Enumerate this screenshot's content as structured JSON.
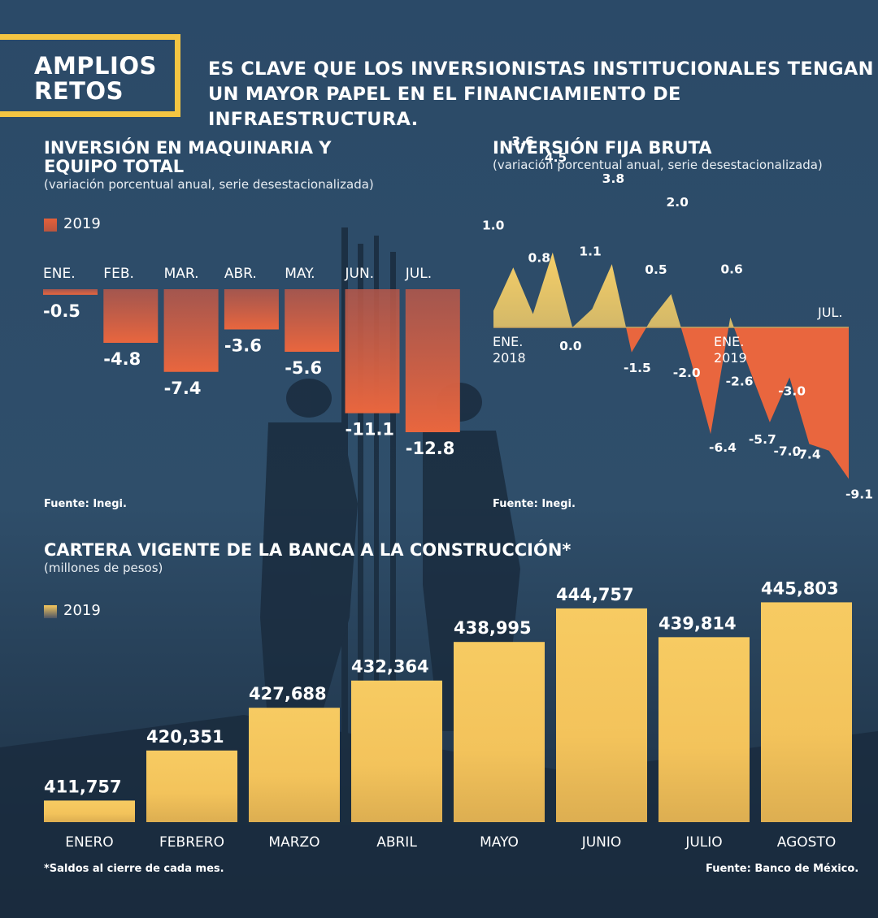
{
  "header": {
    "box_title_line1": "AMPLIOS",
    "box_title_line2": "RETOS",
    "headline_line1": "ES CLAVE QUE LOS INVERSIONISTAS INSTITUCIONALES TENGAN",
    "headline_line2": "UN MAYOR PAPEL EN EL FINANCIAMIENTO DE INFRAESTRUCTURA."
  },
  "colors": {
    "accent": "#f4c542",
    "bar_red": "#e4603a",
    "bar_yellow": "#f6c75c",
    "background": "#2a4a66"
  },
  "chart1_text": {
    "title_line1": "INVERSIÓN EN MAQUINARIA Y",
    "title_line2": "EQUIPO TOTAL",
    "subtitle": "(variación porcentual anual, serie desestacionalizada)",
    "legend": "2019",
    "source": "Fuente: Inegi."
  },
  "chart2_text": {
    "title": "INVERSIÓN FIJA BRUTA",
    "subtitle": "(variación porcentual anual, serie desestacionalizada)",
    "source": "Fuente: Inegi."
  },
  "chart3_text": {
    "title": "CARTERA VIGENTE DE LA BANCA A LA CONSTRUCCIÓN*",
    "subtitle": "(millones de pesos)",
    "legend": "2019",
    "footnote": "*Saldos al cierre de cada mes.",
    "source": "Fuente: Banco de México."
  },
  "chart_data": [
    {
      "type": "bar",
      "title": "INVERSIÓN EN MAQUINARIA Y EQUIPO TOTAL",
      "subtitle": "(variación porcentual anual, serie desestacionalizada)",
      "categories": [
        "ENE.",
        "FEB.",
        "MAR.",
        "ABR.",
        "MAY.",
        "JUN.",
        "JUL."
      ],
      "series": [
        {
          "name": "2019",
          "values": [
            -0.5,
            -4.8,
            -7.4,
            -3.6,
            -5.6,
            -11.1,
            -12.8
          ]
        }
      ],
      "data_labels": [
        "-0.5",
        "-4.8",
        "-7.4",
        "-3.6",
        "-5.6",
        "-11.1",
        "-12.8"
      ],
      "ylim": [
        -12.8,
        0
      ]
    },
    {
      "type": "area",
      "title": "INVERSIÓN FIJA BRUTA",
      "subtitle": "(variación porcentual anual, serie desestacionalizada)",
      "x": [
        "2018-01",
        "2018-02",
        "2018-03",
        "2018-04",
        "2018-05",
        "2018-06",
        "2018-07",
        "2018-08",
        "2018-09",
        "2018-10",
        "2018-11",
        "2018-12",
        "2019-01",
        "2019-02",
        "2019-03",
        "2019-04",
        "2019-05",
        "2019-06",
        "2019-07"
      ],
      "values": [
        1.0,
        3.6,
        0.8,
        4.5,
        0.0,
        1.1,
        3.8,
        -1.5,
        0.5,
        2.0,
        -2.0,
        -6.4,
        0.6,
        -2.6,
        -5.7,
        -3.0,
        -7.0,
        -7.4,
        -9.1
      ],
      "data_labels": [
        "1.0",
        "3.6",
        "0.8",
        "4.5",
        "0.0",
        "1.1",
        "3.8",
        "-1.5",
        "0.5",
        "2.0",
        "-2.0",
        "-6.4",
        "0.6",
        "-2.6",
        "-5.7",
        "-3.0",
        "-7.0",
        "-7.4",
        "-9.1"
      ],
      "axis_labels": {
        "start_line1": "ENE.",
        "start_line2": "2018",
        "mid_line1": "ENE.",
        "mid_line2": "2019",
        "end": "JUL."
      }
    },
    {
      "type": "bar",
      "title": "CARTERA VIGENTE DE LA BANCA A LA CONSTRUCCIÓN*",
      "subtitle": "(millones de pesos)",
      "categories": [
        "ENERO",
        "FEBRERO",
        "MARZO",
        "ABRIL",
        "MAYO",
        "JUNIO",
        "JULIO",
        "AGOSTO"
      ],
      "series": [
        {
          "name": "2019",
          "values": [
            411757,
            420351,
            427688,
            432364,
            438995,
            444757,
            439814,
            445803
          ]
        }
      ],
      "data_labels": [
        "411,757",
        "420,351",
        "427,688",
        "432,364",
        "438,995",
        "444,757",
        "439,814",
        "445,803"
      ],
      "ylim": [
        410000,
        446000
      ]
    }
  ]
}
